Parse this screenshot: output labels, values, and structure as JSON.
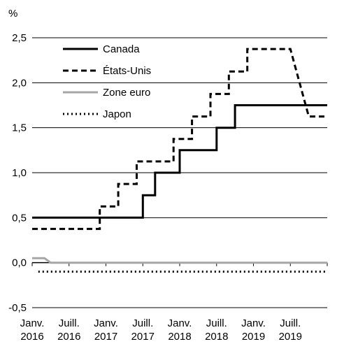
{
  "chart_data": {
    "type": "line",
    "y_unit_label": "%",
    "ylim": [
      -0.5,
      2.5
    ],
    "y_ticks": [
      "2,5",
      "2,0",
      "1,5",
      "1,0",
      "0,5",
      "0,0",
      "-0,5"
    ],
    "y_tick_values": [
      2.5,
      2.0,
      1.5,
      1.0,
      0.5,
      0.0,
      -0.5
    ],
    "x_ticks": [
      {
        "line1": "Janv.",
        "line2": "2016",
        "x": "2016-01"
      },
      {
        "line1": "Juill.",
        "line2": "2016",
        "x": "2016-07"
      },
      {
        "line1": "Janv.",
        "line2": "2017",
        "x": "2017-01"
      },
      {
        "line1": "Juill.",
        "line2": "2017",
        "x": "2017-07"
      },
      {
        "line1": "Janv.",
        "line2": "2018",
        "x": "2018-01"
      },
      {
        "line1": "Juill.",
        "line2": "2018",
        "x": "2018-07"
      },
      {
        "line1": "Janv.",
        "line2": "2019",
        "x": "2019-01"
      },
      {
        "line1": "Juill.",
        "line2": "2019",
        "x": "2019-07"
      }
    ],
    "xlim": [
      "2016-01",
      "2020-01"
    ],
    "grid": "horizontal",
    "legend_position": "top-left",
    "series": [
      {
        "name": "Canada",
        "style": "solid",
        "color": "#000000",
        "points": [
          [
            "2016-01",
            0.5
          ],
          [
            "2017-07",
            0.5
          ],
          [
            "2017-07",
            0.75
          ],
          [
            "2017-09",
            0.75
          ],
          [
            "2017-09",
            1.0
          ],
          [
            "2018-01",
            1.0
          ],
          [
            "2018-01",
            1.25
          ],
          [
            "2018-07",
            1.25
          ],
          [
            "2018-07",
            1.5
          ],
          [
            "2018-10",
            1.5
          ],
          [
            "2018-10",
            1.75
          ],
          [
            "2020-01",
            1.75
          ]
        ]
      },
      {
        "name": "États-Unis",
        "style": "dashed",
        "color": "#000000",
        "points": [
          [
            "2016-01",
            0.375
          ],
          [
            "2016-12",
            0.375
          ],
          [
            "2016-12",
            0.625
          ],
          [
            "2017-03",
            0.625
          ],
          [
            "2017-03",
            0.875
          ],
          [
            "2017-06",
            0.875
          ],
          [
            "2017-06",
            1.125
          ],
          [
            "2017-12",
            1.125
          ],
          [
            "2017-12",
            1.375
          ],
          [
            "2018-03",
            1.375
          ],
          [
            "2018-03",
            1.625
          ],
          [
            "2018-06",
            1.625
          ],
          [
            "2018-06",
            1.875
          ],
          [
            "2018-09",
            1.875
          ],
          [
            "2018-09",
            2.125
          ],
          [
            "2018-12",
            2.125
          ],
          [
            "2018-12",
            2.375
          ],
          [
            "2019-07",
            2.375
          ],
          [
            "2019-10",
            1.625
          ],
          [
            "2020-01",
            1.625
          ]
        ]
      },
      {
        "name": "Zone euro",
        "style": "solid",
        "color": "#a6a6a6",
        "points": [
          [
            "2016-01",
            0.05
          ],
          [
            "2016-03",
            0.05
          ],
          [
            "2016-04",
            0.0
          ],
          [
            "2020-01",
            0.0
          ]
        ]
      },
      {
        "name": "Japon",
        "style": "dotted",
        "color": "#000000",
        "points": [
          [
            "2016-02",
            -0.1
          ],
          [
            "2020-01",
            -0.1
          ]
        ]
      }
    ]
  }
}
